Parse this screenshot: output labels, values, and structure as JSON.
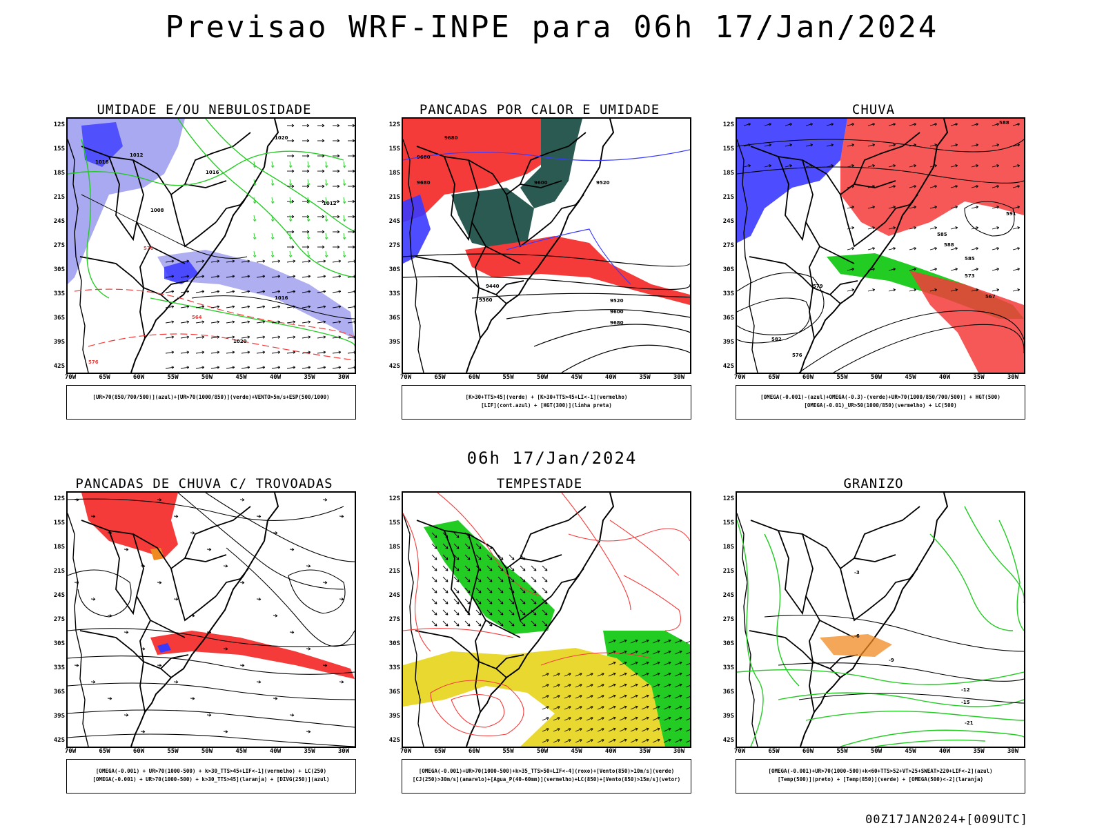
{
  "main_title": "Previsao WRF-INPE  para 06h 17/Jan/2024",
  "mid_date": "06h 17/Jan/2024",
  "footer_stamp": "00Z17JAN2024+[009UTC]",
  "axes": {
    "lat_labels": [
      "12S",
      "15S",
      "18S",
      "21S",
      "24S",
      "27S",
      "30S",
      "33S",
      "36S",
      "39S",
      "42S"
    ],
    "lon_labels": [
      "70W",
      "65W",
      "60W",
      "55W",
      "50W",
      "45W",
      "40W",
      "35W",
      "30W"
    ]
  },
  "colors": {
    "blue": "#3a3aff",
    "lightblue": "#9a9aee",
    "green": "#22cc22",
    "red": "#f53a3a",
    "darkteal": "#2a5a52",
    "yellow": "#e8d830",
    "orange": "#f08a20"
  },
  "panels": [
    {
      "title": "UMIDADE E/OU NEBULOSIDADE",
      "caption": [
        "[UR>70(850/700/500)](azul)+[UR>70(1000/850)](verde)+VENTO>5m/s+ESP(500/1000)"
      ],
      "contour_labels": [
        "1016",
        "1012",
        "1008",
        "1016",
        "1020",
        "1012",
        "1016",
        "1020",
        "570",
        "576",
        "564"
      ]
    },
    {
      "title": "PANCADAS POR CALOR E UMIDADE",
      "caption": [
        "[K>30+TTS>45](verde) + [K>30+TTS>45+LI<-1](vermelho)",
        "[LIF](cont.azul) + [HGT(300)](linha preta)"
      ],
      "contour_labels": [
        "9680",
        "9680",
        "9680",
        "9600",
        "9520",
        "9440",
        "9360",
        "9520",
        "9600",
        "9680"
      ]
    },
    {
      "title": "CHUVA",
      "caption": [
        "[OMEGA(-0.001)-(azul)+OMEGA(-0.3)-(verde)+UR>70(1000/850/700/500)] + HGT(500)",
        "[OMEGA(-0.01)_UR>50(1000/850)(vermelho) + LC(500)"
      ],
      "contour_labels": [
        "588",
        "591",
        "585",
        "579",
        "573",
        "567",
        "582",
        "576",
        "585",
        "588"
      ]
    },
    {
      "title": "PANCADAS DE CHUVA C/ TROVOADAS",
      "caption": [
        "[OMEGA(-0.001) + UR>70(1000-500) + k>30_TTS>45+LIF<-1](vermelho) + LC(250)",
        "[OMEGA(-0.001) + UR>70(1000-500) + k>30_TTS>45](laranja) + [DIVG(250)](azul)"
      ],
      "contour_labels": []
    },
    {
      "title": "TEMPESTADE",
      "caption": [
        "[OMEGA(-0.001)+UR>70(1000-500)+k>35_TTS>50+LIF<-4](roxo)+[Vento(850)>10m/s](verde)",
        "[CJ(250)>30m/s](amarelo)+[Agua_P(40-60mm)](vermelho)+LC(850)+[Vento(850)>15m/s](vetor)"
      ],
      "contour_labels": []
    },
    {
      "title": "GRANIZO",
      "caption": [
        "[OMEGA(-0.001)+UR>70(1000-500)+k<60+TTS>52+VT>25+SWEAT>220+LIF<-2](azul)",
        "[Temp(500)](preto) + [Temp(850)](verde) + [OMEGA(500)<-2](laranja)"
      ],
      "contour_labels": [
        "-3",
        "-6",
        "-9",
        "-12",
        "-15",
        "-21"
      ]
    }
  ]
}
